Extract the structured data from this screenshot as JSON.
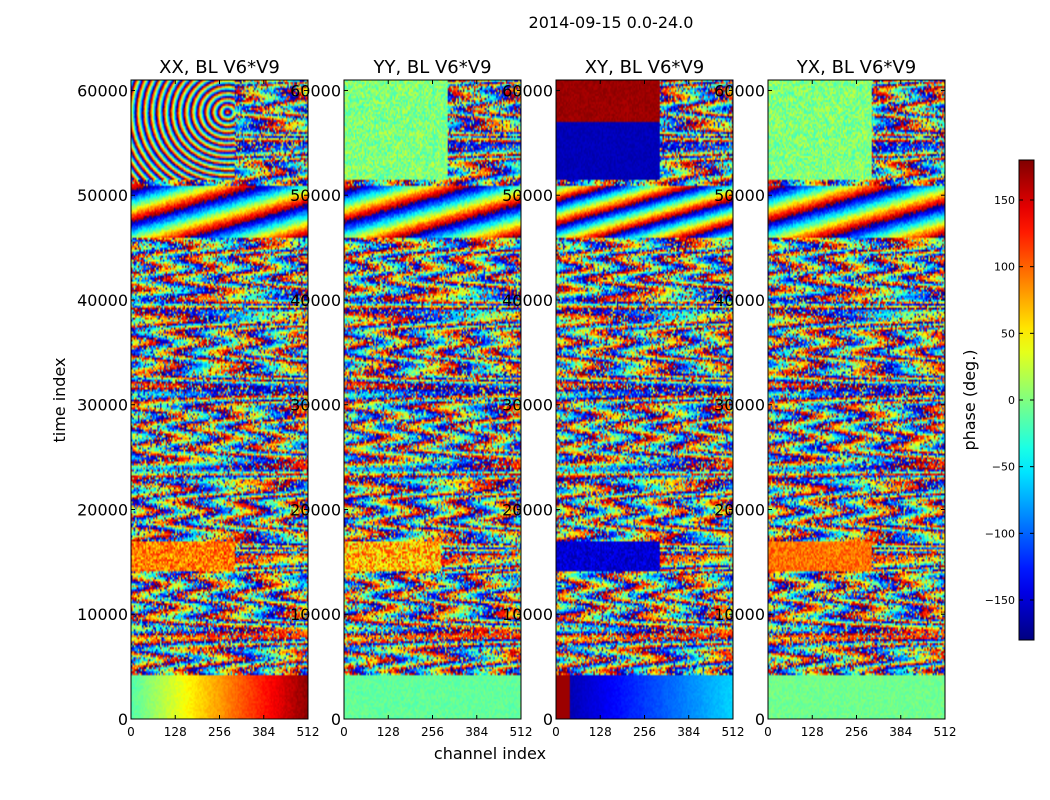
{
  "figure": {
    "suptitle": "2014-09-15 0.0-24.0"
  },
  "chart_data": {
    "type": "heatmap",
    "description_fields_are_visible_text_only": true,
    "panels": [
      {
        "title": "XX, BL V6*V9",
        "mode": "xx"
      },
      {
        "title": "YY, BL V6*V9",
        "mode": "yy"
      },
      {
        "title": "XY, BL V6*V9",
        "mode": "xy"
      },
      {
        "title": "YX, BL V6*V9",
        "mode": "yx"
      }
    ],
    "xlabel": "channel index",
    "ylabel": "time index",
    "xlim": [
      0,
      512
    ],
    "ylim": [
      0,
      61000
    ],
    "x_ticks": [
      0,
      128,
      256,
      384,
      512
    ],
    "y_ticks": [
      0,
      10000,
      20000,
      30000,
      40000,
      50000,
      60000
    ],
    "colorbar": {
      "label": "phase (deg.)",
      "vmin": -180,
      "vmax": 180,
      "ticks": [
        -150,
        -100,
        -50,
        0,
        50,
        100,
        150
      ],
      "tick_labels": [
        "−150",
        "−100",
        "−50",
        "0",
        "50",
        "100",
        "150"
      ],
      "colormap": "jet",
      "position": "right"
    },
    "grid": false
  }
}
